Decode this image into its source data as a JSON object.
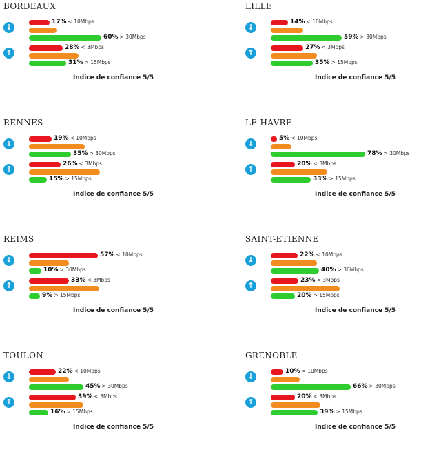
{
  "colors": {
    "red": "#e8161e",
    "orange": "#f28c1e",
    "green": "#2ecc2e",
    "icon": "#1aa0d8"
  },
  "icons": {
    "download": "arrow-down-icon",
    "upload": "arrow-up-icon"
  },
  "cities": [
    {
      "name": "BORDEAUX",
      "confidence": "Indice de confiance 5/5",
      "download": {
        "low": {
          "pct": "17%",
          "label": "< 10Mbps",
          "value": 17
        },
        "mid": {
          "value": 23
        },
        "high": {
          "pct": "60%",
          "label": "> 30Mbps",
          "value": 60
        }
      },
      "upload": {
        "low": {
          "pct": "28%",
          "label": "< 3Mbps",
          "value": 28
        },
        "mid": {
          "value": 41
        },
        "high": {
          "pct": "31%",
          "label": "> 15Mbps",
          "value": 31
        }
      }
    },
    {
      "name": "LILLE",
      "confidence": "Indice de confiance 5/5",
      "download": {
        "low": {
          "pct": "14%",
          "label": "< 10Mbps",
          "value": 14
        },
        "mid": {
          "value": 27
        },
        "high": {
          "pct": "59%",
          "label": "> 30Mbps",
          "value": 59
        }
      },
      "upload": {
        "low": {
          "pct": "27%",
          "label": "< 3Mbps",
          "value": 27
        },
        "mid": {
          "value": 38
        },
        "high": {
          "pct": "35%",
          "label": "> 15Mbps",
          "value": 35
        }
      }
    },
    {
      "name": "RENNES",
      "confidence": "Indice de confiance 5/5",
      "download": {
        "low": {
          "pct": "19%",
          "label": "< 10Mbps",
          "value": 19
        },
        "mid": {
          "value": 46
        },
        "high": {
          "pct": "35%",
          "label": "> 30Mbps",
          "value": 35
        }
      },
      "upload": {
        "low": {
          "pct": "26%",
          "label": "< 3Mbps",
          "value": 26
        },
        "mid": {
          "value": 59
        },
        "high": {
          "pct": "15%",
          "label": "> 15Mbps",
          "value": 15
        }
      }
    },
    {
      "name": "LE HAVRE",
      "confidence": "Indice de confiance 5/5",
      "download": {
        "low": {
          "pct": "5%",
          "label": "< 10Mbps",
          "value": 5
        },
        "mid": {
          "value": 17
        },
        "high": {
          "pct": "78%",
          "label": "> 30Mbps",
          "value": 78
        }
      },
      "upload": {
        "low": {
          "pct": "20%",
          "label": "< 3Mbps",
          "value": 20
        },
        "mid": {
          "value": 47
        },
        "high": {
          "pct": "33%",
          "label": "> 15Mbps",
          "value": 33
        }
      }
    },
    {
      "name": "REIMS",
      "confidence": "Indice de confiance 5/5",
      "download": {
        "low": {
          "pct": "57%",
          "label": "< 10Mbps",
          "value": 57
        },
        "mid": {
          "value": 33
        },
        "high": {
          "pct": "10%",
          "label": "> 30Mbps",
          "value": 10
        }
      },
      "upload": {
        "low": {
          "pct": "33%",
          "label": "< 3Mbps",
          "value": 33
        },
        "mid": {
          "value": 58
        },
        "high": {
          "pct": "9%",
          "label": "> 15Mbps",
          "value": 9
        }
      }
    },
    {
      "name": "SAINT-ETIENNE",
      "confidence": "Indice de confiance 5/5",
      "download": {
        "low": {
          "pct": "22%",
          "label": "< 10Mbps",
          "value": 22
        },
        "mid": {
          "value": 38
        },
        "high": {
          "pct": "40%",
          "label": "> 30Mbps",
          "value": 40
        }
      },
      "upload": {
        "low": {
          "pct": "23%",
          "label": "< 3Mbps",
          "value": 23
        },
        "mid": {
          "value": 57
        },
        "high": {
          "pct": "20%",
          "label": "> 15Mbps",
          "value": 20
        }
      }
    },
    {
      "name": "TOULON",
      "confidence": "Indice de confiance 5/5",
      "download": {
        "low": {
          "pct": "22%",
          "label": "< 10Mbps",
          "value": 22
        },
        "mid": {
          "value": 33
        },
        "high": {
          "pct": "45%",
          "label": "> 30Mbps",
          "value": 45
        }
      },
      "upload": {
        "low": {
          "pct": "39%",
          "label": "< 3Mbps",
          "value": 39
        },
        "mid": {
          "value": 45
        },
        "high": {
          "pct": "16%",
          "label": "> 15Mbps",
          "value": 16
        }
      }
    },
    {
      "name": "GRENOBLE",
      "confidence": "Indice de confiance 5/5",
      "download": {
        "low": {
          "pct": "10%",
          "label": "< 10Mbps",
          "value": 10
        },
        "mid": {
          "value": 24
        },
        "high": {
          "pct": "66%",
          "label": "> 30Mbps",
          "value": 66
        }
      },
      "upload": {
        "low": {
          "pct": "20%",
          "label": "< 3Mbps",
          "value": 20
        },
        "mid": {
          "value": 41
        },
        "high": {
          "pct": "39%",
          "label": "> 15Mbps",
          "value": 39
        }
      }
    }
  ],
  "chart_data": {
    "type": "bar",
    "categories": [
      "BORDEAUX",
      "LILLE",
      "RENNES",
      "LE HAVRE",
      "REIMS",
      "SAINT-ETIENNE",
      "TOULON",
      "GRENOBLE"
    ],
    "series": [
      {
        "name": "< 10Mbps",
        "values": [
          17,
          14,
          19,
          5,
          57,
          22,
          22,
          10
        ]
      },
      {
        "name": "> 30Mbps",
        "values": [
          60,
          59,
          35,
          78,
          10,
          40,
          45,
          66
        ]
      },
      {
        "name": "< 3Mbps",
        "values": [
          28,
          27,
          26,
          20,
          33,
          23,
          39,
          20
        ]
      },
      {
        "name": "> 15Mbps",
        "values": [
          31,
          35,
          15,
          33,
          9,
          20,
          16,
          39
        ]
      }
    ]
  }
}
